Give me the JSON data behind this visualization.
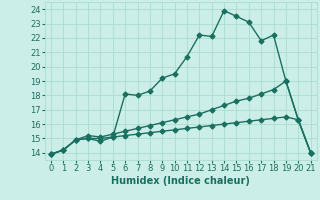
{
  "title": "",
  "xlabel": "Humidex (Indice chaleur)",
  "bg_color": "#cceee8",
  "grid_color": "#aaddcc",
  "line_color": "#1a7060",
  "xlim": [
    -0.5,
    21.5
  ],
  "ylim": [
    13.5,
    24.5
  ],
  "xticks": [
    0,
    1,
    2,
    3,
    4,
    5,
    6,
    7,
    8,
    9,
    10,
    11,
    12,
    13,
    14,
    15,
    16,
    17,
    18,
    19,
    20,
    21
  ],
  "yticks": [
    14,
    15,
    16,
    17,
    18,
    19,
    20,
    21,
    22,
    23,
    24
  ],
  "line1_x": [
    0,
    1,
    2,
    3,
    4,
    5,
    6,
    7,
    8,
    9,
    10,
    11,
    12,
    13,
    14,
    15,
    16,
    17,
    18,
    19,
    20,
    21
  ],
  "line1_y": [
    13.9,
    14.2,
    14.9,
    15.0,
    14.8,
    15.1,
    18.1,
    18.0,
    18.3,
    19.2,
    19.5,
    20.7,
    22.2,
    22.1,
    23.9,
    23.5,
    23.1,
    21.8,
    22.2,
    19.0,
    16.3,
    14.0
  ],
  "line2_x": [
    0,
    1,
    2,
    3,
    4,
    5,
    6,
    7,
    8,
    9,
    10,
    11,
    12,
    13,
    14,
    15,
    16,
    17,
    18,
    19,
    20,
    21
  ],
  "line2_y": [
    13.9,
    14.2,
    14.9,
    15.2,
    15.1,
    15.3,
    15.5,
    15.7,
    15.9,
    16.1,
    16.3,
    16.5,
    16.7,
    17.0,
    17.3,
    17.6,
    17.8,
    18.1,
    18.4,
    19.0,
    16.3,
    14.0
  ],
  "line3_x": [
    0,
    1,
    2,
    3,
    4,
    5,
    6,
    7,
    8,
    9,
    10,
    11,
    12,
    13,
    14,
    15,
    16,
    17,
    18,
    19,
    20,
    21
  ],
  "line3_y": [
    13.9,
    14.2,
    14.9,
    15.0,
    15.0,
    15.1,
    15.2,
    15.3,
    15.4,
    15.5,
    15.6,
    15.7,
    15.8,
    15.9,
    16.0,
    16.1,
    16.2,
    16.3,
    16.4,
    16.5,
    16.3,
    14.0
  ],
  "marker_size": 2.5,
  "line_width": 1.0,
  "font_size_label": 7,
  "font_size_tick": 6
}
